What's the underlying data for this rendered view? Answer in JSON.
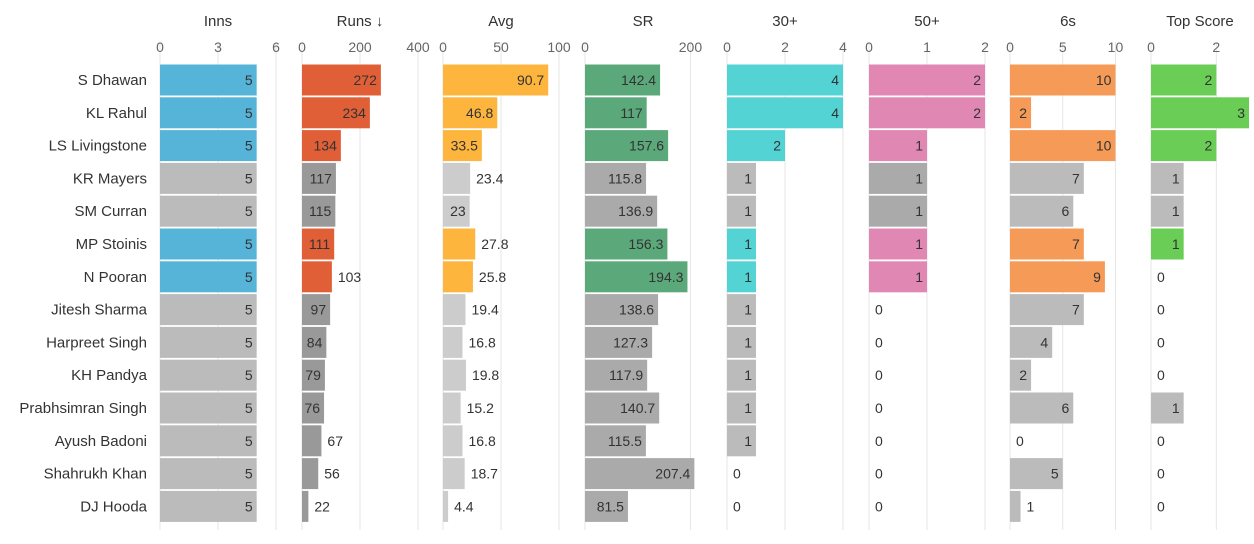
{
  "chart_data": {
    "type": "bar",
    "orientation": "horizontal",
    "grid": true,
    "categories": [
      "S Dhawan",
      "KL Rahul",
      "LS Livingstone",
      "KR Mayers",
      "SM Curran",
      "MP Stoinis",
      "N Pooran",
      "Jitesh Sharma",
      "Harpreet Singh",
      "KH Pandya",
      "Prabhsimran Singh",
      "Ayush Badoni",
      "Shahrukh Khan",
      "DJ Hooda"
    ],
    "highlighted": [
      true,
      true,
      true,
      false,
      false,
      true,
      true,
      false,
      false,
      false,
      false,
      false,
      false,
      false
    ],
    "columns": [
      {
        "name": "Inns",
        "color": "#56b4d9",
        "muted": "#bbbbbb",
        "xlim": [
          0,
          6
        ],
        "ticks": [
          "0",
          "3",
          "6"
        ],
        "values": [
          5,
          5,
          5,
          5,
          5,
          5,
          5,
          5,
          5,
          5,
          5,
          5,
          5,
          5
        ]
      },
      {
        "name": "Runs ↓",
        "color": "#e05f36",
        "muted": "#999999",
        "xlim": [
          0,
          400
        ],
        "ticks": [
          "0",
          "200",
          "400"
        ],
        "values": [
          272,
          234,
          134,
          117,
          115,
          111,
          103,
          97,
          84,
          79,
          76,
          67,
          56,
          22
        ]
      },
      {
        "name": "Avg",
        "color": "#fdb53e",
        "muted": "#cccccc",
        "xlim": [
          0,
          100
        ],
        "ticks": [
          "0",
          "50",
          "100"
        ],
        "values": [
          90.7,
          46.8,
          33.5,
          23.4,
          23,
          27.8,
          25.8,
          19.4,
          16.8,
          19.8,
          15.2,
          16.8,
          18.7,
          4.4
        ]
      },
      {
        "name": "SR",
        "color": "#5ba97a",
        "muted": "#aaaaaa",
        "xlim": [
          0,
          220
        ],
        "ticks": [
          "0",
          "200"
        ],
        "values": [
          142.4,
          117,
          157.6,
          115.8,
          136.9,
          156.3,
          194.3,
          138.6,
          127.3,
          117.9,
          140.7,
          115.5,
          207.4,
          81.5
        ]
      },
      {
        "name": "30+",
        "color": "#53d3d3",
        "muted": "#bbbbbb",
        "xlim": [
          0,
          4
        ],
        "ticks": [
          "0",
          "2",
          "4"
        ],
        "values": [
          4,
          4,
          2,
          1,
          1,
          1,
          1,
          1,
          1,
          1,
          1,
          1,
          0,
          0
        ]
      },
      {
        "name": "50+",
        "color": "#e087b4",
        "muted": "#aaaaaa",
        "xlim": [
          0,
          2
        ],
        "ticks": [
          "0",
          "1",
          "2"
        ],
        "values": [
          2,
          2,
          1,
          1,
          1,
          1,
          1,
          0,
          0,
          0,
          0,
          0,
          0,
          0
        ]
      },
      {
        "name": "6s",
        "color": "#f59b57",
        "muted": "#bbbbbb",
        "xlim": [
          0,
          11
        ],
        "ticks": [
          "0",
          "5",
          "10"
        ],
        "values": [
          10,
          2,
          10,
          7,
          6,
          7,
          9,
          7,
          4,
          2,
          6,
          0,
          5,
          1
        ]
      },
      {
        "name": "Top Score",
        "color": "#6acd55",
        "muted": "#bbbbbb",
        "xlim": [
          0,
          3
        ],
        "ticks": [
          "0",
          "2"
        ],
        "values": [
          2,
          3,
          2,
          1,
          1,
          1,
          0,
          0,
          0,
          0,
          1,
          0,
          0,
          0
        ]
      }
    ]
  }
}
